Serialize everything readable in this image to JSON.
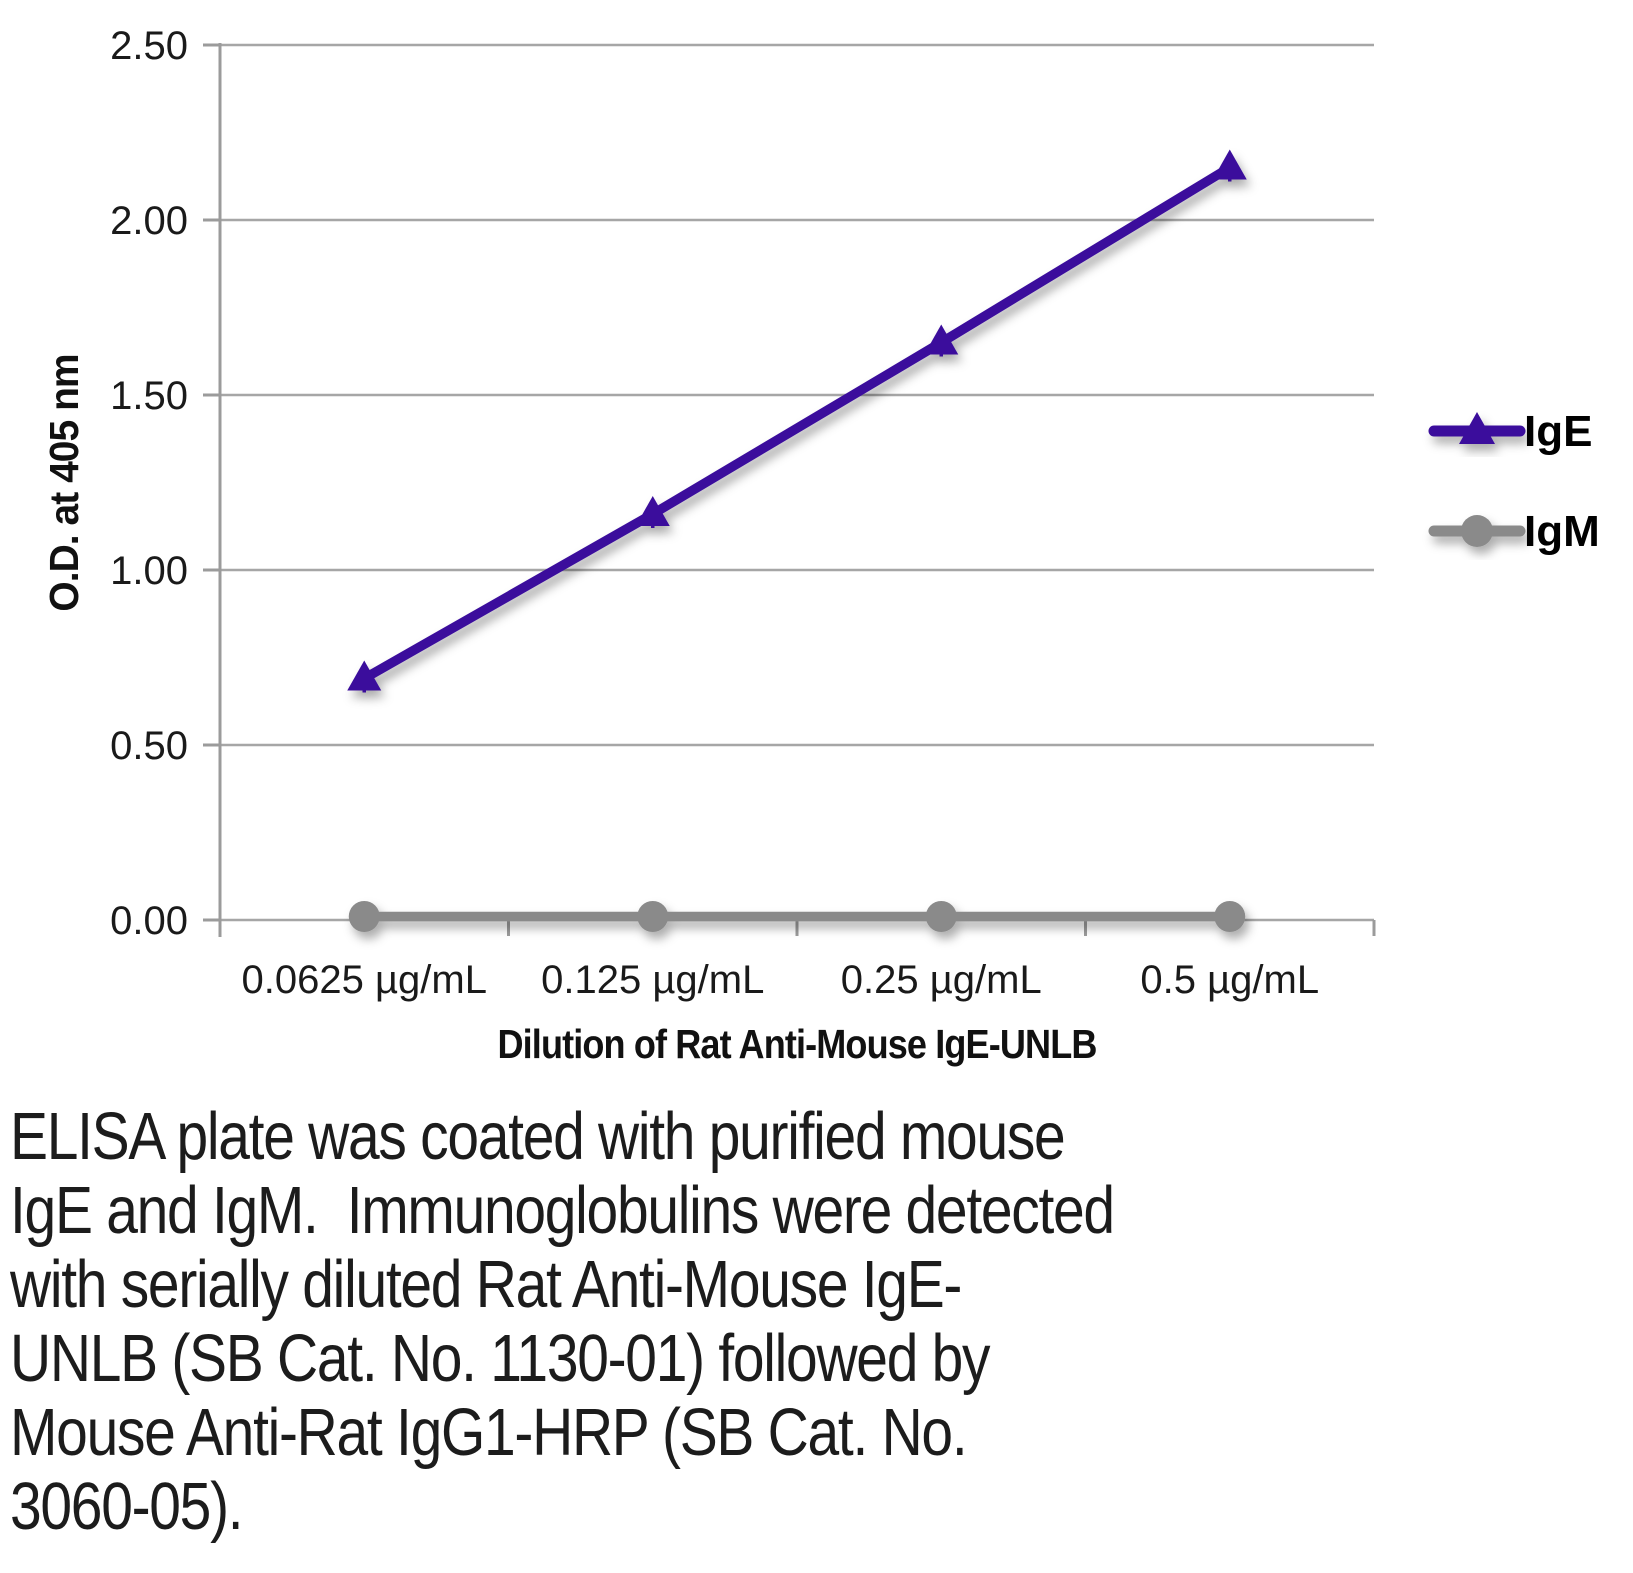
{
  "chart_data": {
    "type": "line",
    "title": "",
    "xlabel": "Dilution of Rat Anti-Mouse IgE-UNLB",
    "ylabel": "O.D. at 405 nm",
    "categories": [
      "0.0625 µg/mL",
      "0.125 µg/mL",
      "0.25 µg/mL",
      "0.5 µg/mL"
    ],
    "series": [
      {
        "name": "IgE",
        "values": [
          0.69,
          1.16,
          1.65,
          2.15
        ],
        "color": "#3A119C",
        "marker": "triangle",
        "error": 0.04
      },
      {
        "name": "IgM",
        "values": [
          0.01,
          0.01,
          0.01,
          0.01
        ],
        "color": "#8A8A8A",
        "marker": "circle",
        "error": 0
      }
    ],
    "ylim": [
      0,
      2.5
    ],
    "yticks": [
      {
        "value": 0.0,
        "label": "0.00"
      },
      {
        "value": 0.5,
        "label": "0.50"
      },
      {
        "value": 1.0,
        "label": "1.00"
      },
      {
        "value": 1.5,
        "label": "1.50"
      },
      {
        "value": 2.0,
        "label": "2.00"
      },
      {
        "value": 2.5,
        "label": "2.50"
      }
    ],
    "grid": "horizontal",
    "legend_position": "right-outside",
    "colors": {
      "grid": "#A6A6A6",
      "axis": "#9B9B9B"
    }
  },
  "caption": {
    "lines": [
      "ELISA plate was coated with purified mouse",
      "IgE and IgM.  Immunoglobulins were detected",
      "with serially diluted Rat Anti-Mouse IgE-",
      "UNLB (SB Cat. No. 1130-01) followed by",
      "Mouse Anti-Rat IgG1-HRP (SB Cat. No.",
      "3060-05)."
    ]
  }
}
